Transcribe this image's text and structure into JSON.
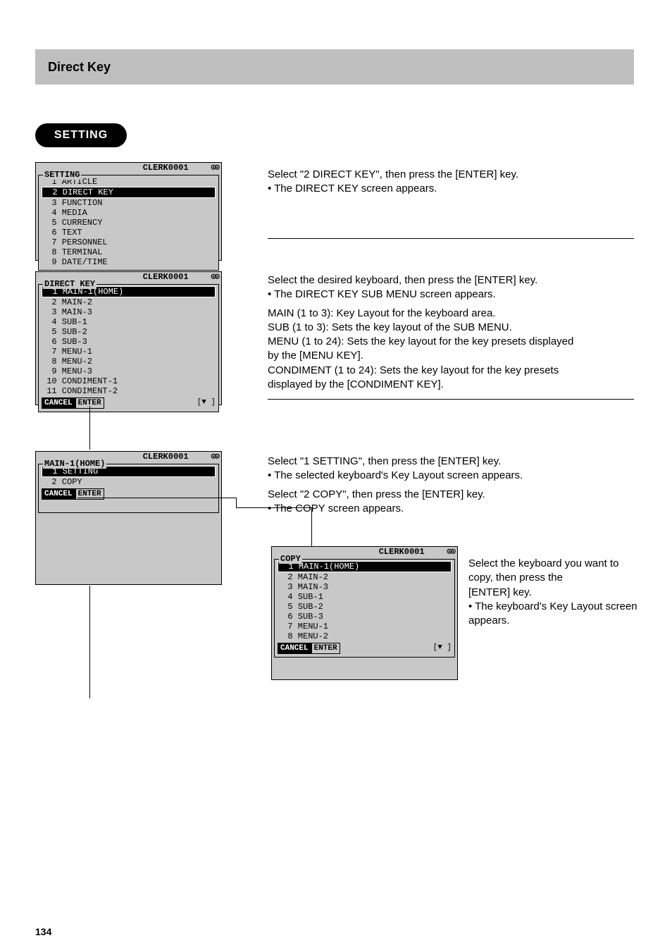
{
  "header": {
    "title": "Direct Key"
  },
  "pill": {
    "label": "SETTING"
  },
  "clerk_label": "CLERK0001",
  "indicator": "⊙⊙",
  "screen_setting": {
    "title": "SETTING",
    "items": [
      {
        "n": "1",
        "label": "ARTICLE"
      },
      {
        "n": "2",
        "label": "DIRECT KEY"
      },
      {
        "n": "3",
        "label": "FUNCTION"
      },
      {
        "n": "4",
        "label": "MEDIA"
      },
      {
        "n": "5",
        "label": "CURRENCY"
      },
      {
        "n": "6",
        "label": "TEXT"
      },
      {
        "n": "7",
        "label": "PERSONNEL"
      },
      {
        "n": "8",
        "label": "TERMINAL"
      },
      {
        "n": "9",
        "label": "DATE/TIME"
      }
    ],
    "selected_index": 1
  },
  "screen_directkey": {
    "title": "DIRECT KEY",
    "items": [
      {
        "n": "1",
        "label": "MAIN-1(HOME)"
      },
      {
        "n": "2",
        "label": "MAIN-2"
      },
      {
        "n": "3",
        "label": "MAIN-3"
      },
      {
        "n": "4",
        "label": "SUB-1"
      },
      {
        "n": "5",
        "label": "SUB-2"
      },
      {
        "n": "6",
        "label": "SUB-3"
      },
      {
        "n": "7",
        "label": "MENU-1"
      },
      {
        "n": "8",
        "label": "MENU-2"
      },
      {
        "n": "9",
        "label": "MENU-3"
      },
      {
        "n": "10",
        "label": "CONDIMENT-1"
      },
      {
        "n": "11",
        "label": "CONDIMENT-2"
      }
    ],
    "selected_index": 0,
    "cancel": "CANCEL",
    "enter": "ENTER",
    "arrow": "[▼ ]"
  },
  "screen_main1": {
    "title": "MAIN-1(HOME)",
    "items": [
      {
        "n": "1",
        "label": "SETTING"
      },
      {
        "n": "2",
        "label": "COPY"
      }
    ],
    "selected_index": 0,
    "cancel": "CANCEL",
    "enter": "ENTER"
  },
  "screen_copy": {
    "title": "COPY",
    "items": [
      {
        "n": "1",
        "label": "MAIN-1(HOME)"
      },
      {
        "n": "2",
        "label": "MAIN-2"
      },
      {
        "n": "3",
        "label": "MAIN-3"
      },
      {
        "n": "4",
        "label": "SUB-1"
      },
      {
        "n": "5",
        "label": "SUB-2"
      },
      {
        "n": "6",
        "label": "SUB-3"
      },
      {
        "n": "7",
        "label": "MENU-1"
      },
      {
        "n": "8",
        "label": "MENU-2"
      }
    ],
    "selected_index": 0,
    "cancel": "CANCEL",
    "enter": "ENTER",
    "arrow": "[▼ ]"
  },
  "instr1": {
    "line1": "Select \"2 DIRECT KEY\", then press the [ENTER] key.",
    "line2": "• The DIRECT KEY screen appears."
  },
  "instr2": {
    "line1": "Select the desired keyboard, then press the [ENTER] key.",
    "line2": "• The DIRECT KEY SUB MENU screen appears.",
    "aux1": "MAIN (1 to 3): Key Layout for the keyboard area.",
    "aux2": "SUB (1 to 3): Sets the key layout of the SUB MENU.",
    "aux3a": "MENU (1 to 24): Sets the key layout for the key presets displayed",
    "aux3b": "by the [MENU KEY].",
    "aux4a": "CONDIMENT (1 to 24): Sets the key layout for the key presets",
    "aux4b": "displayed by the [CONDIMENT KEY]."
  },
  "instr3": {
    "line1": "Select \"1 SETTING\", then press the [ENTER] key.",
    "line2": "• The selected keyboard's Key Layout screen appears.",
    "line3": "Select \"2 COPY\", then press the [ENTER] key.",
    "line4": "• The COPY screen appears."
  },
  "instr4": {
    "line1": "Select the keyboard you want to copy, then press the",
    "line2": "[ENTER] key.",
    "line3": "• The keyboard's Key Layout screen appears."
  },
  "page_number": "134"
}
